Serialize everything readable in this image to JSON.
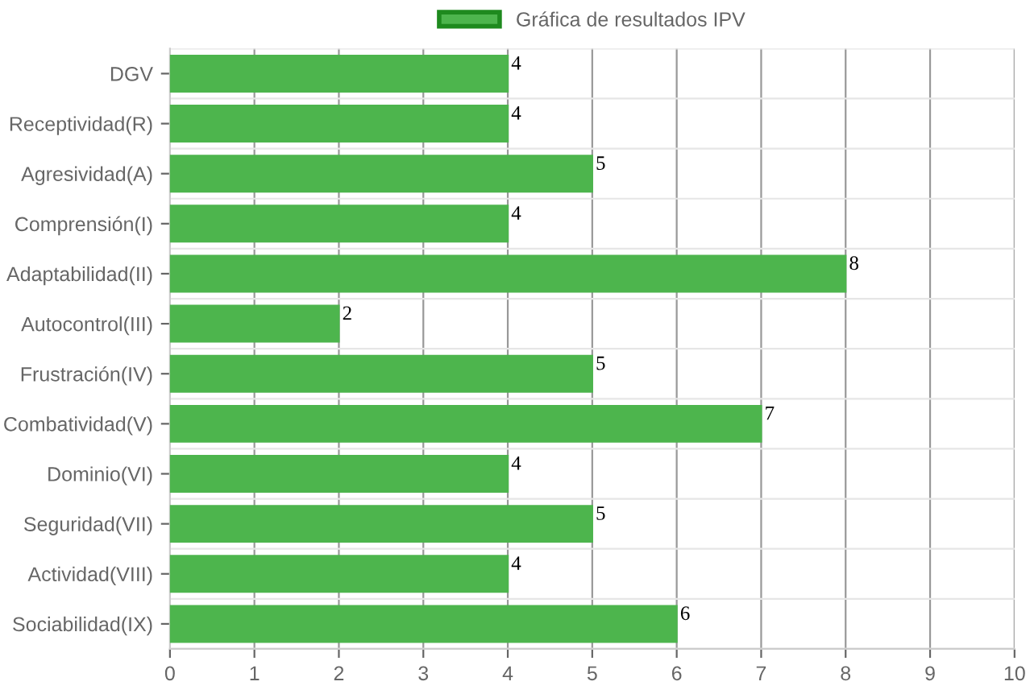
{
  "chart_data": {
    "type": "bar",
    "orientation": "horizontal",
    "categories": [
      "DGV",
      "Receptividad(R)",
      "Agresividad(A)",
      "Comprensión(I)",
      "Adaptabilidad(II)",
      "Autocontrol(III)",
      "Frustración(IV)",
      "Combatividad(V)",
      "Dominio(VI)",
      "Seguridad(VII)",
      "Actividad(VIII)",
      "Sociabilidad(IX)"
    ],
    "series": [
      {
        "name": "Gráfica de resultados IPV",
        "color": "#4db54d",
        "values": [
          4,
          4,
          5,
          4,
          8,
          2,
          5,
          7,
          4,
          5,
          4,
          6
        ]
      }
    ],
    "xlim": [
      0,
      10
    ],
    "xticks": [
      0,
      1,
      2,
      3,
      4,
      5,
      6,
      7,
      8,
      9,
      10
    ],
    "grid": true,
    "legend": "top",
    "data_labels": true
  }
}
